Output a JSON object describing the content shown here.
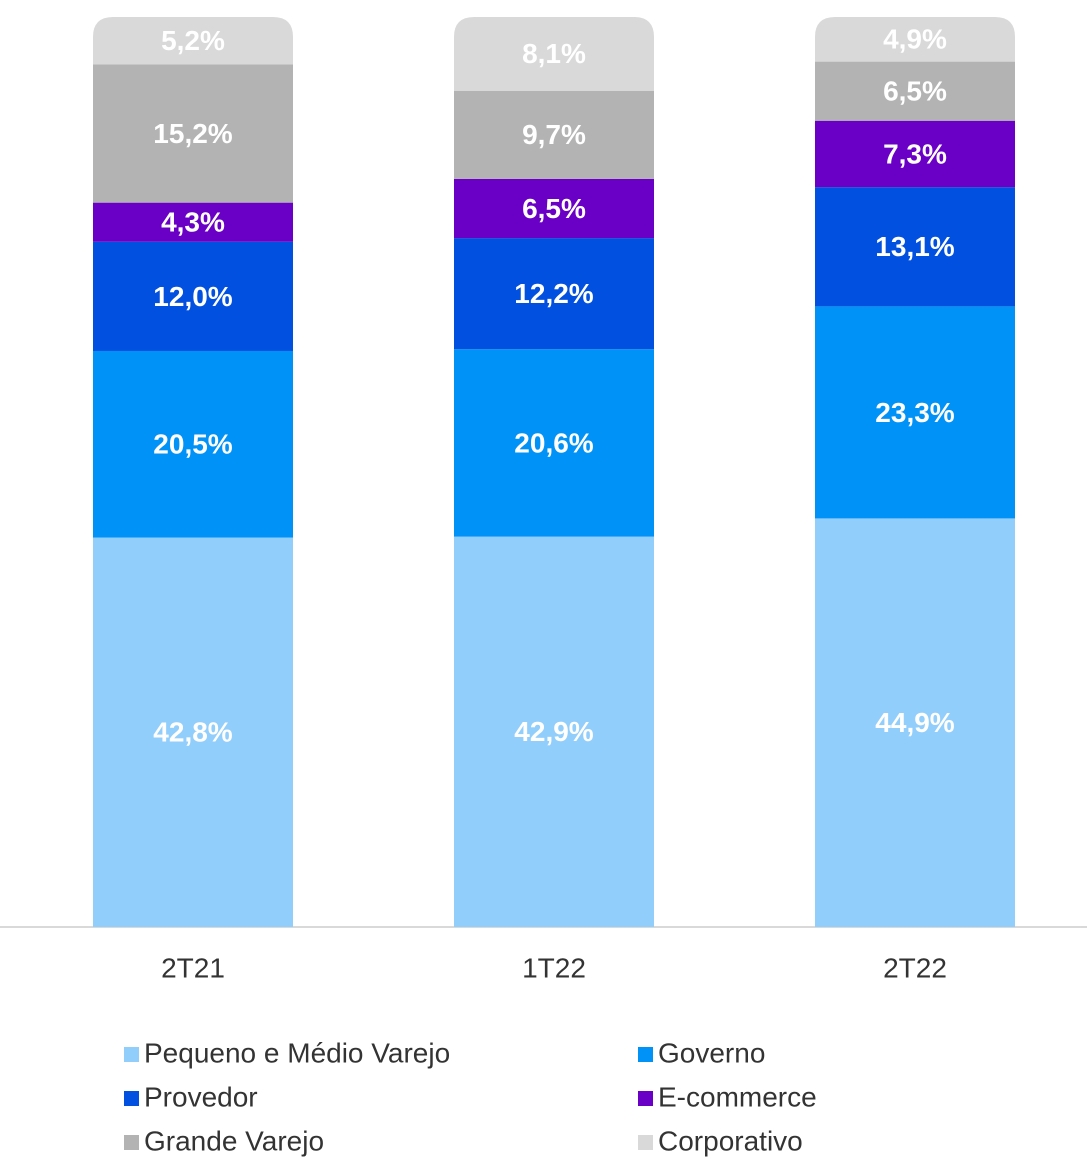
{
  "chart_data": {
    "type": "stacked_bar",
    "categories": [
      "2T21",
      "1T22",
      "2T22"
    ],
    "ylim": [
      0,
      100
    ],
    "series": [
      {
        "name": "Pequeno e Médio Varejo",
        "color": "#92cefb",
        "values": [
          42.8,
          42.9,
          44.9
        ],
        "value_labels": [
          "42,8%",
          "42,9%",
          "44,9%"
        ]
      },
      {
        "name": "Governo",
        "color": "#0192f8",
        "values": [
          20.5,
          20.6,
          23.3
        ],
        "value_labels": [
          "20,5%",
          "20,6%",
          "23,3%"
        ]
      },
      {
        "name": "Provedor",
        "color": "#0150df",
        "values": [
          12.0,
          12.2,
          13.1
        ],
        "value_labels": [
          "12,0%",
          "12,2%",
          "13,1%"
        ]
      },
      {
        "name": "E-commerce",
        "color": "#6a00c6",
        "values": [
          4.3,
          6.5,
          7.3
        ],
        "value_labels": [
          "4,3%",
          "6,5%",
          "7,3%"
        ]
      },
      {
        "name": "Grande Varejo",
        "color": "#b3b3b3",
        "values": [
          15.2,
          9.7,
          6.5
        ],
        "value_labels": [
          "15,2%",
          "9,7%",
          "6,5%"
        ]
      },
      {
        "name": "Corporativo",
        "color": "#d9d9d9",
        "values": [
          5.2,
          8.1,
          4.9
        ],
        "value_labels": [
          "5,2%",
          "8,1%",
          "4,9%"
        ]
      }
    ]
  }
}
